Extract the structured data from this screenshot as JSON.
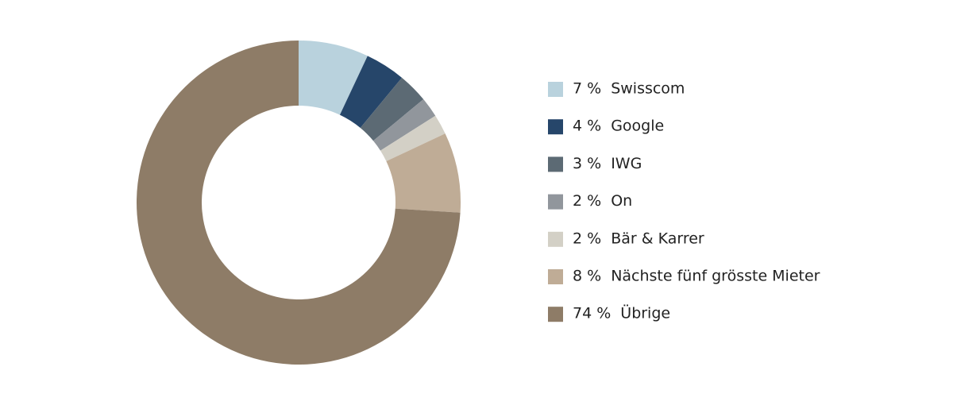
{
  "chart_data": {
    "type": "donut",
    "categories": [
      "Swisscom",
      "Google",
      "IWG",
      "On",
      "Bär & Karrer",
      "Nächste fünf grösste Mieter",
      "Übrige"
    ],
    "values": [
      7,
      4,
      3,
      2,
      2,
      8,
      74
    ],
    "value_labels": [
      "7 %",
      "4 %",
      "3 %",
      "2 %",
      "2 %",
      "8 %",
      "74 %"
    ],
    "colors": [
      "#b9d2dd",
      "#26466a",
      "#5c6a74",
      "#91969c",
      "#d3d0c6",
      "#bfac96",
      "#8e7c67"
    ],
    "legend": "right"
  }
}
